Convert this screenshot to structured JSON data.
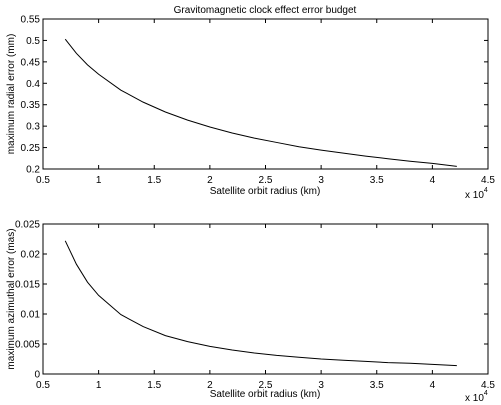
{
  "chart_data": [
    {
      "type": "line",
      "title": "Gravitomagnetic clock effect error budget",
      "xlabel": "Satellite orbit radius (km)",
      "ylabel": "maximum radial error  (mm)",
      "x_multiplier": "x 10",
      "x_multiplier_exp": "4",
      "xlim": [
        0.5,
        4.5
      ],
      "ylim": [
        0.2,
        0.55
      ],
      "xticks": [
        "0.5",
        "1",
        "1.5",
        "2",
        "2.5",
        "3",
        "3.5",
        "4",
        "4.5"
      ],
      "yticks": [
        "0.2",
        "0.25",
        "0.3",
        "0.35",
        "0.4",
        "0.45",
        "0.5",
        "0.55"
      ],
      "grid": false,
      "series": [
        {
          "x": [
            0.7,
            0.8,
            0.9,
            1.0,
            1.2,
            1.4,
            1.6,
            1.8,
            2.0,
            2.2,
            2.4,
            2.6,
            2.8,
            3.0,
            3.2,
            3.4,
            3.6,
            3.8,
            4.0,
            4.22
          ],
          "values": [
            0.503,
            0.47,
            0.443,
            0.421,
            0.384,
            0.356,
            0.333,
            0.314,
            0.298,
            0.284,
            0.272,
            0.262,
            0.252,
            0.244,
            0.237,
            0.23,
            0.224,
            0.218,
            0.213,
            0.206
          ]
        }
      ]
    },
    {
      "type": "line",
      "title": "",
      "xlabel": "Satellite orbit radius (km)",
      "ylabel": "maximum azimuthal error  (mas)",
      "x_multiplier": "x 10",
      "x_multiplier_exp": "4",
      "xlim": [
        0.5,
        4.5
      ],
      "ylim": [
        0,
        0.025
      ],
      "xticks": [
        "0.5",
        "1",
        "1.5",
        "2",
        "2.5",
        "3",
        "3.5",
        "4",
        "4.5"
      ],
      "yticks": [
        "0",
        "0.005",
        "0.01",
        "0.015",
        "0.02",
        "0.025"
      ],
      "grid": false,
      "series": [
        {
          "x": [
            0.7,
            0.8,
            0.9,
            1.0,
            1.2,
            1.4,
            1.6,
            1.8,
            2.0,
            2.2,
            2.4,
            2.6,
            2.8,
            3.0,
            3.2,
            3.4,
            3.6,
            3.8,
            4.0,
            4.22
          ],
          "values": [
            0.0222,
            0.0183,
            0.0153,
            0.0131,
            0.0099,
            0.0079,
            0.0064,
            0.0054,
            0.0046,
            0.004,
            0.0035,
            0.0031,
            0.0028,
            0.0025,
            0.0023,
            0.0021,
            0.0019,
            0.0018,
            0.0016,
            0.0014
          ]
        }
      ]
    }
  ]
}
